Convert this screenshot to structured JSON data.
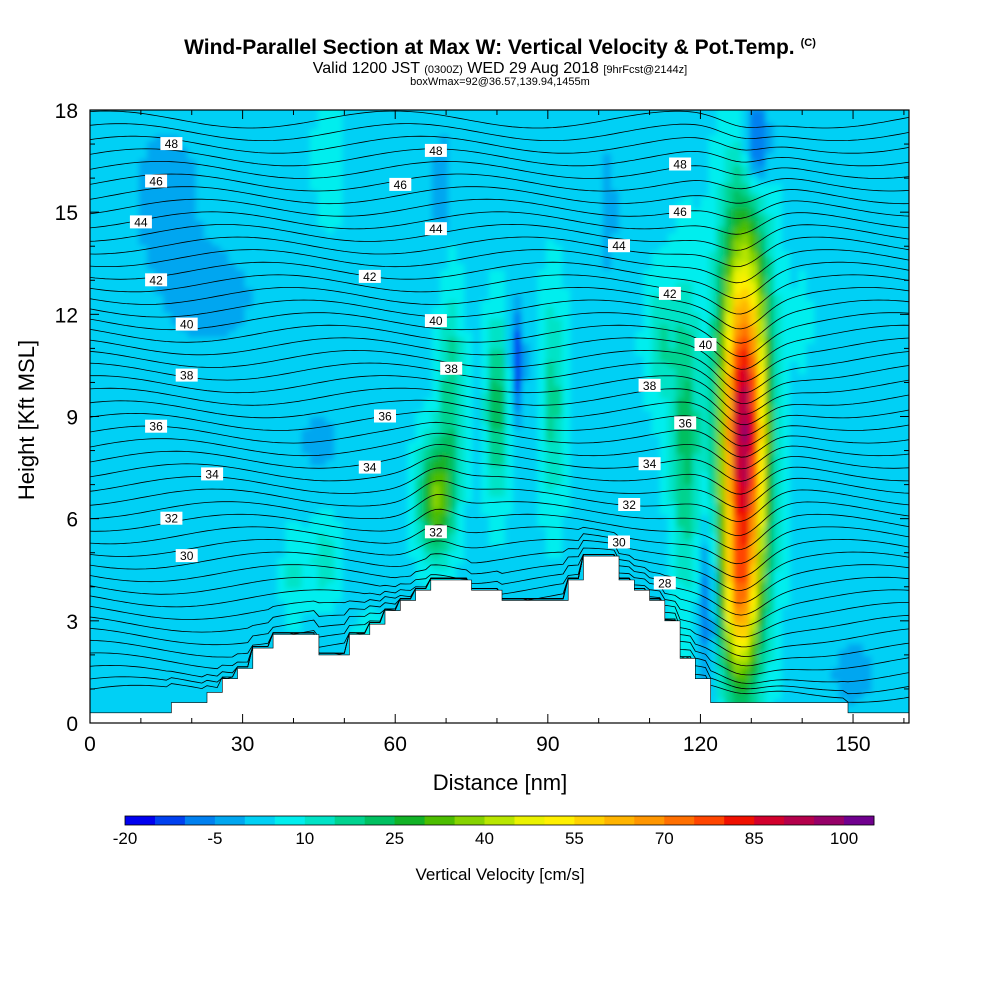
{
  "title": {
    "main": "Wind-Parallel Section at Max W: Vertical Velocity & Pot.Temp.",
    "copyright": "(C)",
    "valid_prefix": "Valid 1200 JST",
    "valid_utc": "(0300Z)",
    "valid_date": "WED 29 Aug 2018",
    "forecast": "[9hrFcst@2144z]",
    "box_info": "boxWmax=92@36.57,139.94,1455m"
  },
  "colorbar": {
    "title": "Vertical Velocity [cm/s]",
    "tick_labels": [
      "-20",
      "-5",
      "10",
      "25",
      "40",
      "55",
      "70",
      "85",
      "100"
    ],
    "levels": [
      -20,
      -15,
      -10,
      -5,
      0,
      5,
      10,
      15,
      20,
      25,
      30,
      35,
      40,
      45,
      50,
      55,
      60,
      65,
      70,
      75,
      80,
      85,
      90,
      95,
      100
    ],
    "colors": [
      "#0000f0",
      "#0040f0",
      "#0080f0",
      "#00a6f0",
      "#00d0f5",
      "#00eeee",
      "#00e3c6",
      "#00d38f",
      "#00c060",
      "#12b226",
      "#4cbd00",
      "#86d300",
      "#b8e600",
      "#eaf200",
      "#fff000",
      "#ffd200",
      "#ffb400",
      "#ff9600",
      "#ff6f00",
      "#ff4500",
      "#f01000",
      "#d2002c",
      "#b4004b",
      "#960068",
      "#70008e"
    ]
  },
  "chart_data": {
    "type": "heatmap",
    "xlabel": "Distance [nm]",
    "ylabel": "Height [Kft MSL]",
    "xlim": [
      0,
      161
    ],
    "ylim": [
      0,
      18
    ],
    "xticks": [
      0,
      30,
      60,
      90,
      120,
      150
    ],
    "yticks": [
      0,
      3,
      6,
      9,
      12,
      15,
      18
    ],
    "field": "Vertical Velocity [cm/s]",
    "max_w_cm_s": 92,
    "max_w_location": {
      "lat": 36.57,
      "lon": 139.94,
      "height_m": 1455
    },
    "terrain_kft": {
      "x": [
        0,
        16,
        16,
        23,
        23,
        26,
        26,
        29,
        29,
        32,
        32,
        36,
        36,
        45,
        45,
        51,
        51,
        55,
        55,
        58,
        58,
        61,
        61,
        64,
        64,
        67,
        67,
        75,
        75,
        81,
        81,
        94,
        94,
        97,
        97,
        104,
        104,
        107,
        107,
        110,
        110,
        113,
        113,
        116,
        116,
        119,
        119,
        122,
        122,
        149,
        149,
        161
      ],
      "height": [
        0.3,
        0.3,
        0.6,
        0.6,
        0.9,
        0.9,
        1.3,
        1.3,
        1.6,
        1.6,
        2.2,
        2.2,
        2.6,
        2.6,
        2.0,
        2.0,
        2.6,
        2.6,
        2.9,
        2.9,
        3.3,
        3.3,
        3.6,
        3.6,
        3.9,
        3.9,
        4.2,
        4.2,
        3.9,
        3.9,
        3.6,
        3.6,
        4.2,
        4.2,
        4.9,
        4.9,
        4.2,
        4.2,
        3.9,
        3.9,
        3.6,
        3.6,
        3.0,
        3.0,
        1.9,
        1.9,
        1.3,
        1.3,
        0.6,
        0.6,
        0.3,
        0.3
      ]
    },
    "w_features": [
      {
        "name": "main updraft",
        "x": 128.5,
        "y": 8.2,
        "peak_cm_s": 92
      },
      {
        "name": "updraft over ridge",
        "x": 68,
        "y": 6.5,
        "peak_cm_s": 35
      },
      {
        "name": "updraft",
        "x": 80,
        "y": 9.5,
        "peak_cm_s": 23
      },
      {
        "name": "updraft",
        "x": 117,
        "y": 8.5,
        "peak_cm_s": 22
      },
      {
        "name": "downdraft",
        "x": 84,
        "y": 10.6,
        "peak_cm_s": -15
      },
      {
        "name": "downdraft",
        "x": 131,
        "y": 17.0,
        "peak_cm_s": -18
      },
      {
        "name": "downdraft",
        "x": 121,
        "y": 3.5,
        "peak_cm_s": -14
      }
    ],
    "theta_isentropes": {
      "levels": [
        28,
        30,
        32,
        34,
        36,
        38,
        40,
        42,
        44,
        46,
        48
      ],
      "labels": [
        {
          "text": "48",
          "x": 16,
          "y": 17.0
        },
        {
          "text": "48",
          "x": 68,
          "y": 16.8
        },
        {
          "text": "48",
          "x": 116,
          "y": 16.4
        },
        {
          "text": "46",
          "x": 13,
          "y": 15.9
        },
        {
          "text": "46",
          "x": 61,
          "y": 15.8
        },
        {
          "text": "46",
          "x": 116,
          "y": 15.0
        },
        {
          "text": "44",
          "x": 10,
          "y": 14.7
        },
        {
          "text": "44",
          "x": 68,
          "y": 14.5
        },
        {
          "text": "44",
          "x": 104,
          "y": 14.0
        },
        {
          "text": "42",
          "x": 13,
          "y": 13.0
        },
        {
          "text": "42",
          "x": 55,
          "y": 13.1
        },
        {
          "text": "42",
          "x": 114,
          "y": 12.6
        },
        {
          "text": "40",
          "x": 19,
          "y": 11.7
        },
        {
          "text": "40",
          "x": 68,
          "y": 11.8
        },
        {
          "text": "40",
          "x": 121,
          "y": 11.1
        },
        {
          "text": "38",
          "x": 19,
          "y": 10.2
        },
        {
          "text": "38",
          "x": 71,
          "y": 10.4
        },
        {
          "text": "38",
          "x": 110,
          "y": 9.9
        },
        {
          "text": "36",
          "x": 13,
          "y": 8.7
        },
        {
          "text": "36",
          "x": 58,
          "y": 9.0
        },
        {
          "text": "36",
          "x": 117,
          "y": 8.8
        },
        {
          "text": "34",
          "x": 24,
          "y": 7.3
        },
        {
          "text": "34",
          "x": 55,
          "y": 7.5
        },
        {
          "text": "34",
          "x": 110,
          "y": 7.6
        },
        {
          "text": "32",
          "x": 16,
          "y": 6.0
        },
        {
          "text": "32",
          "x": 68,
          "y": 5.6
        },
        {
          "text": "32",
          "x": 106,
          "y": 6.4
        },
        {
          "text": "30",
          "x": 19,
          "y": 4.9
        },
        {
          "text": "30",
          "x": 104,
          "y": 5.3
        },
        {
          "text": "28",
          "x": 113,
          "y": 4.1
        }
      ]
    }
  }
}
